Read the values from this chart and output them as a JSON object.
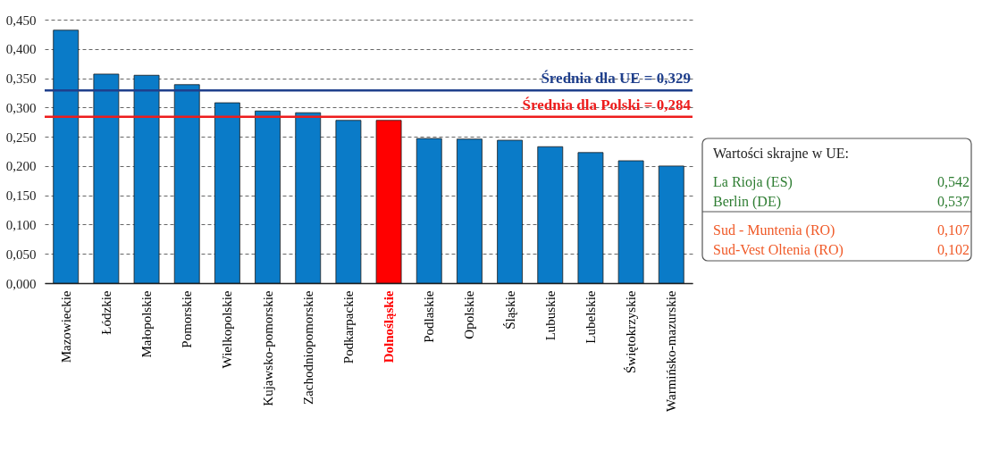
{
  "chart_data": {
    "type": "bar",
    "categories": [
      "Mazowieckie",
      "Łódzkie",
      "Małopolskie",
      "Pomorskie",
      "Wielkopolskie",
      "Kujawsko-pomorskie",
      "Zachodniopomorskie",
      "Podkarpackie",
      "Dolnośląskie",
      "Podlaskie",
      "Opolskie",
      "Śląskie",
      "Lubuskie",
      "Lubelskie",
      "Świętokrzyskie",
      "Warmińsko-mazurskie"
    ],
    "values": [
      0.432,
      0.357,
      0.355,
      0.339,
      0.308,
      0.294,
      0.291,
      0.278,
      0.278,
      0.247,
      0.246,
      0.244,
      0.233,
      0.223,
      0.209,
      0.2
    ],
    "colors": [
      "#0a7bc8",
      "#0a7bc8",
      "#0a7bc8",
      "#0a7bc8",
      "#0a7bc8",
      "#0a7bc8",
      "#0a7bc8",
      "#0a7bc8",
      "#ff0000",
      "#0a7bc8",
      "#0a7bc8",
      "#0a7bc8",
      "#0a7bc8",
      "#0a7bc8",
      "#0a7bc8",
      "#0a7bc8"
    ],
    "ylim": [
      0,
      0.45
    ],
    "yticks": [
      {
        "value": 0,
        "label": "0,000"
      },
      {
        "value": 0.05,
        "label": "0,050"
      },
      {
        "value": 0.1,
        "label": "0,100"
      },
      {
        "value": 0.15,
        "label": "0,150"
      },
      {
        "value": 0.2,
        "label": "0,200"
      },
      {
        "value": 0.25,
        "label": "0,250"
      },
      {
        "value": 0.3,
        "label": "0,300"
      },
      {
        "value": 0.35,
        "label": "0,350"
      },
      {
        "value": 0.4,
        "label": "0,400"
      },
      {
        "value": 0.45,
        "label": "0,450"
      }
    ],
    "grid": "y",
    "ref_lines": [
      {
        "axis": "y",
        "value": 0.329,
        "label": "Średnia dla UE = 0,329",
        "color": "#1f3f8c"
      },
      {
        "axis": "y",
        "value": 0.284,
        "label": "Średnia dla Polski = 0,284",
        "color": "#ee1c1c"
      }
    ],
    "annotations": [
      "Wartości skrajne w UE:",
      "La Rioja (ES)",
      "0,542",
      "Berlin (DE)",
      "0,537",
      "Sud - Muntenia (RO)",
      "0,107",
      "Sud-Vest Oltenia (RO)",
      "0,102"
    ]
  }
}
